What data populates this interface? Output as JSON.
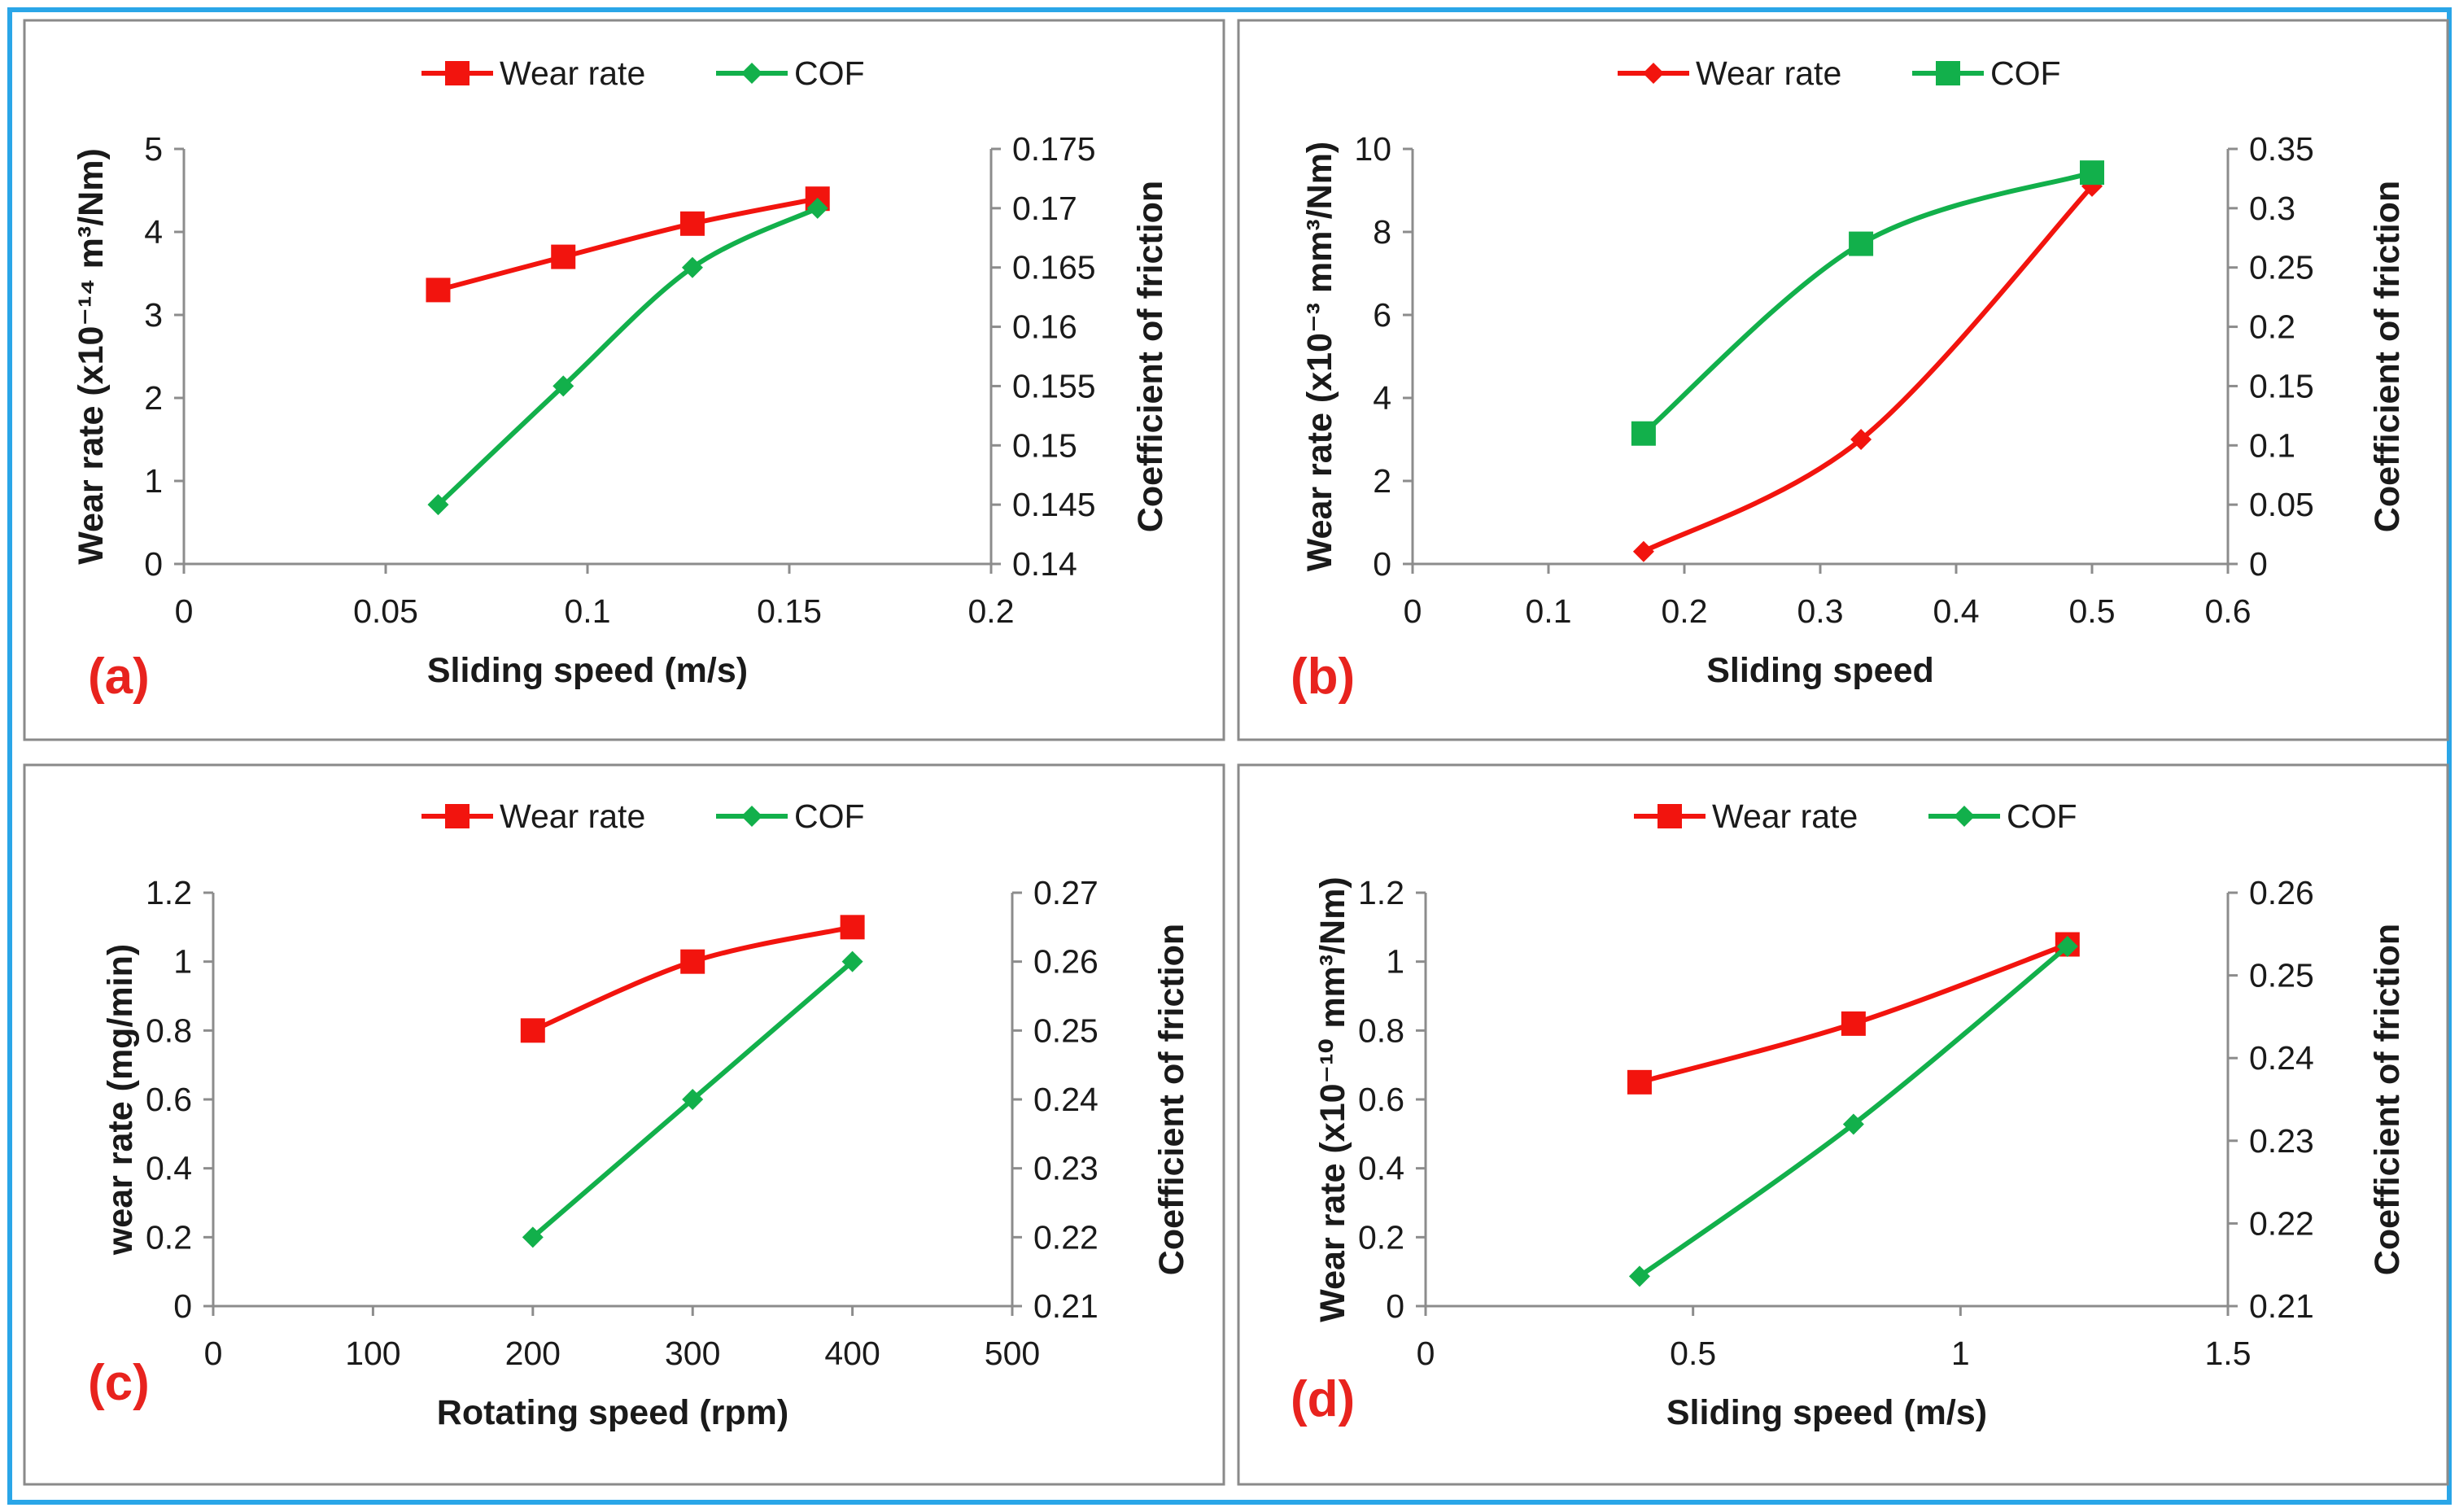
{
  "colors": {
    "frame": "#2aa6e8",
    "wear": "#f2140e",
    "cof": "#12b04b",
    "axis": "#8c8c8c",
    "tag": "#e8231e"
  },
  "chart_data": [
    {
      "type": "line",
      "panel_tag": "(a)",
      "xlabel": "Sliding speed (m/s)",
      "ylabel": "Wear rate (x10⁻¹⁴ m³/Nm)",
      "y2label": "Coefficient of friction",
      "xlim": [
        0,
        0.2
      ],
      "ylim": [
        0,
        5
      ],
      "y2lim": [
        0.14,
        0.175
      ],
      "xticks": [
        "0",
        "0.05",
        "0.1",
        "0.15",
        "0.2"
      ],
      "yticks": [
        "0",
        "1",
        "2",
        "3",
        "4",
        "5"
      ],
      "y2ticks": [
        "0.14",
        "0.145",
        "0.15",
        "0.155",
        "0.16",
        "0.165",
        "0.17",
        "0.175"
      ],
      "legend": [
        "Wear rate",
        "COF"
      ],
      "series": [
        {
          "name": "Wear rate",
          "axis": "left",
          "marker": "square",
          "x": [
            0.063,
            0.094,
            0.126,
            0.157
          ],
          "values": [
            3.3,
            3.7,
            4.1,
            4.4
          ]
        },
        {
          "name": "COF",
          "axis": "right",
          "marker": "diamond",
          "x": [
            0.063,
            0.094,
            0.126,
            0.157
          ],
          "values": [
            0.145,
            0.155,
            0.165,
            0.17
          ]
        }
      ]
    },
    {
      "type": "line",
      "panel_tag": "(b)",
      "xlabel": "Sliding speed",
      "ylabel": "Wear rate (x10⁻³ mm³/Nm)",
      "y2label": "Coefficient of friction",
      "xlim": [
        0,
        0.6
      ],
      "ylim": [
        0,
        10
      ],
      "y2lim": [
        0,
        0.35
      ],
      "xticks": [
        "0",
        "0.1",
        "0.2",
        "0.3",
        "0.4",
        "0.5",
        "0.6"
      ],
      "yticks": [
        "0",
        "2",
        "4",
        "6",
        "8",
        "10"
      ],
      "y2ticks": [
        "0",
        "0.05",
        "0.1",
        "0.15",
        "0.2",
        "0.25",
        "0.3",
        "0.35"
      ],
      "legend": [
        "Wear rate",
        "COF"
      ],
      "series": [
        {
          "name": "Wear rate",
          "axis": "left",
          "marker": "diamond",
          "x": [
            0.17,
            0.33,
            0.5
          ],
          "values": [
            0.3,
            3.0,
            9.1
          ]
        },
        {
          "name": "COF",
          "axis": "right",
          "marker": "square",
          "x": [
            0.17,
            0.33,
            0.5
          ],
          "values": [
            0.11,
            0.27,
            0.33
          ]
        }
      ]
    },
    {
      "type": "line",
      "panel_tag": "(c)",
      "xlabel": "Rotating speed (rpm)",
      "ylabel": "wear rate (mg/min)",
      "y2label": "Coefficient of friction",
      "xlim": [
        0,
        500
      ],
      "ylim": [
        0,
        1.2
      ],
      "y2lim": [
        0.21,
        0.27
      ],
      "xticks": [
        "0",
        "100",
        "200",
        "300",
        "400",
        "500"
      ],
      "yticks": [
        "0",
        "0.2",
        "0.4",
        "0.6",
        "0.8",
        "1",
        "1.2"
      ],
      "y2ticks": [
        "0.21",
        "0.22",
        "0.23",
        "0.24",
        "0.25",
        "0.26",
        "0.27"
      ],
      "legend": [
        "Wear rate",
        "COF"
      ],
      "series": [
        {
          "name": "Wear rate",
          "axis": "left",
          "marker": "square",
          "x": [
            200,
            300,
            400
          ],
          "values": [
            0.8,
            1.0,
            1.1
          ]
        },
        {
          "name": "COF",
          "axis": "right",
          "marker": "diamond",
          "x": [
            200,
            300,
            400
          ],
          "values": [
            0.22,
            0.24,
            0.26
          ]
        }
      ]
    },
    {
      "type": "line",
      "panel_tag": "(d)",
      "xlabel": "Sliding speed (m/s)",
      "ylabel": "Wear rate (x10⁻¹⁰ mm³/Nm)",
      "y2label": "Coefficient of friction",
      "xlim": [
        0,
        1.5
      ],
      "ylim": [
        0,
        1.2
      ],
      "y2lim": [
        0.21,
        0.26
      ],
      "xticks": [
        "0",
        "0.5",
        "1",
        "1.5"
      ],
      "yticks": [
        "0",
        "0.2",
        "0.4",
        "0.6",
        "0.8",
        "1",
        "1.2"
      ],
      "y2ticks": [
        "0.21",
        "0.22",
        "0.23",
        "0.24",
        "0.25",
        "0.26"
      ],
      "legend": [
        "Wear rate",
        "COF"
      ],
      "series": [
        {
          "name": "Wear rate",
          "axis": "left",
          "marker": "square",
          "x": [
            0.4,
            0.8,
            1.2
          ],
          "values": [
            0.65,
            0.82,
            1.05
          ]
        },
        {
          "name": "COF",
          "axis": "right",
          "marker": "diamond",
          "x": [
            0.4,
            0.8,
            1.2
          ],
          "values": [
            0.2136,
            0.232,
            0.2535
          ]
        }
      ]
    }
  ]
}
